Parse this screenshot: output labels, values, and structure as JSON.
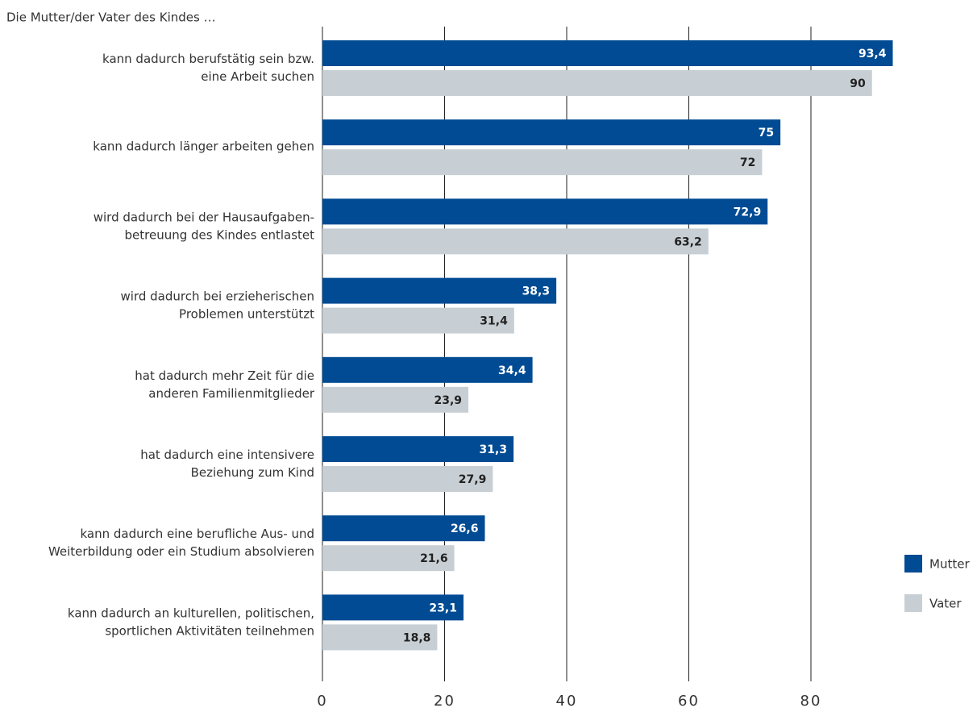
{
  "chart_data": {
    "type": "barh",
    "subtitle": "Die Mutter/der Vater des Kindes …",
    "categories": [
      "kann dadurch berufstätig sein bzw.\neine Arbeit suchen",
      "kann dadurch länger arbeiten gehen",
      "wird dadurch bei der Hausaufgaben-\nbetreuung des Kindes entlastet",
      "wird dadurch bei erzieherischen\nProblemen unterstützt",
      "hat dadurch mehr Zeit für die\nanderen Familienmitglieder",
      "hat dadurch eine intensivere\nBeziehung zum Kind",
      "kann dadurch eine berufliche Aus- und\nWeiterbildung oder ein Studium absolvieren",
      "kann dadurch an kulturellen, politischen,\nsportlichen Aktivitäten teilnehmen"
    ],
    "series": [
      {
        "name": "Mutter",
        "color": "#004b93",
        "values": [
          93.4,
          75,
          72.9,
          38.3,
          34.4,
          31.3,
          26.6,
          23.1
        ],
        "value_labels": [
          "93,4",
          "75",
          "72,9",
          "38,3",
          "34,4",
          "31,3",
          "26,6",
          "23,1"
        ]
      },
      {
        "name": "Vater",
        "color": "#c8cfd4",
        "values": [
          90,
          72,
          63.2,
          31.4,
          23.9,
          27.9,
          21.6,
          18.8
        ],
        "value_labels": [
          "90",
          "72",
          "63,2",
          "31,4",
          "23,9",
          "27,9",
          "21,6",
          "18,8"
        ]
      }
    ],
    "xlim": [
      0,
      100
    ],
    "xticks": [
      0,
      20,
      40,
      60,
      80
    ],
    "grid": true,
    "legend": "right"
  }
}
